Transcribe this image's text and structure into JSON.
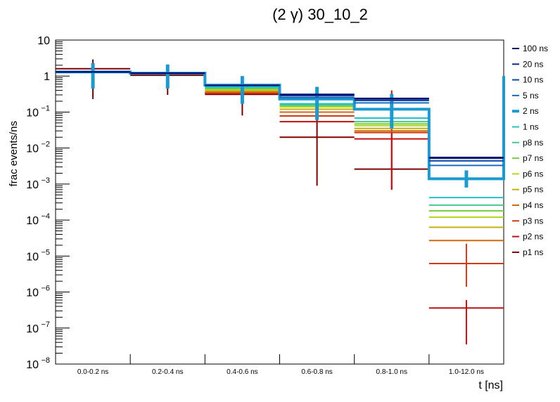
{
  "chart_data": {
    "type": "step-histogram",
    "title": "(2 γ) 30_10_2",
    "xlabel": "t [ns]",
    "ylabel": "frac events/ns",
    "yscale": "log",
    "ylim": [
      1e-08,
      10
    ],
    "ytick_labels": [
      {
        "base": "10",
        "exp": ""
      },
      {
        "base": "1",
        "exp": ""
      },
      {
        "base": "10",
        "exp": "−1"
      },
      {
        "base": "10",
        "exp": "−2"
      },
      {
        "base": "10",
        "exp": "−3"
      },
      {
        "base": "10",
        "exp": "−4"
      },
      {
        "base": "10",
        "exp": "−5"
      },
      {
        "base": "10",
        "exp": "−6"
      },
      {
        "base": "10",
        "exp": "−7"
      },
      {
        "base": "10",
        "exp": "−8"
      }
    ],
    "categories": [
      "0.0-0.2 ns",
      "0.2-0.4 ns",
      "0.4-0.6 ns",
      "0.6-0.8 ns",
      "0.8-1.0 ns",
      "1.0-12.0 ns"
    ],
    "legend_placement": "right",
    "series": [
      {
        "name": "100 ns",
        "color": "#000a6e",
        "values": [
          1.3,
          1.2,
          0.55,
          0.31,
          0.24,
          0.0055
        ]
      },
      {
        "name": "20 ns",
        "color": "#0a2a8c",
        "values": [
          1.3,
          1.2,
          0.55,
          0.3,
          0.23,
          0.0052
        ]
      },
      {
        "name": "10 ns",
        "color": "#1048a6",
        "values": [
          1.3,
          1.2,
          0.55,
          0.28,
          0.21,
          0.0044
        ]
      },
      {
        "name": "5 ns",
        "color": "#1a6cbc",
        "values": [
          1.3,
          1.2,
          0.55,
          0.25,
          0.18,
          0.0033
        ]
      },
      {
        "name": "2 ns",
        "color": "#1a9ad0",
        "thick": true,
        "values": [
          1.3,
          1.2,
          0.56,
          0.23,
          0.12,
          0.0014
        ],
        "err": [
          [
            0.45,
            2.3
          ],
          [
            0.45,
            2.1
          ],
          [
            0.17,
            1.0
          ],
          [
            0.06,
            0.5
          ],
          [
            0.035,
            0.32
          ],
          [
            0.0008,
            0.0024
          ]
        ]
      },
      {
        "name": "1 ns",
        "color": "#22c2c8",
        "values": [
          1.3,
          1.2,
          0.5,
          0.17,
          0.068,
          0.00042
        ]
      },
      {
        "name": "p8 ns",
        "color": "#48c88c",
        "values": [
          1.3,
          1.2,
          0.47,
          0.16,
          0.054,
          0.00026
        ]
      },
      {
        "name": "p7 ns",
        "color": "#78d04a",
        "values": [
          1.3,
          1.2,
          0.45,
          0.15,
          0.047,
          0.00018
        ]
      },
      {
        "name": "p6 ns",
        "color": "#b4d81e",
        "values": [
          1.3,
          1.2,
          0.42,
          0.14,
          0.042,
          0.00012
        ]
      },
      {
        "name": "p5 ns",
        "color": "#c8b010",
        "values": [
          1.3,
          1.2,
          0.39,
          0.12,
          0.035,
          6.3e-05
        ]
      },
      {
        "name": "p4 ns",
        "color": "#d06a10",
        "values": [
          1.3,
          1.2,
          0.36,
          0.1,
          0.03,
          2.7e-05
        ]
      },
      {
        "name": "p3 ns",
        "color": "#d03a10",
        "values": [
          1.3,
          1.2,
          0.34,
          0.078,
          0.027,
          6.2e-06
        ],
        "err": [
          null,
          null,
          null,
          null,
          null,
          [
            1.4e-06,
            2.2e-05
          ]
        ]
      },
      {
        "name": "p2 ns",
        "color": "#c01010",
        "values": [
          1.3,
          1.2,
          0.33,
          0.054,
          0.018,
          3.6e-07
        ],
        "err": [
          null,
          null,
          null,
          null,
          [
            0.0007,
            0.4
          ],
          [
            3.5e-08,
            6e-07
          ]
        ]
      },
      {
        "name": "p1 ns",
        "color": "#800000",
        "values": [
          1.6,
          1.05,
          0.31,
          0.02,
          0.0026,
          null
        ],
        "err": [
          [
            0.23,
            2.9
          ],
          [
            0.3,
            1.8
          ],
          [
            0.08,
            0.95
          ],
          [
            0.0009,
            0.5
          ],
          [
            0.0007,
            0.04
          ],
          null
        ]
      }
    ]
  }
}
